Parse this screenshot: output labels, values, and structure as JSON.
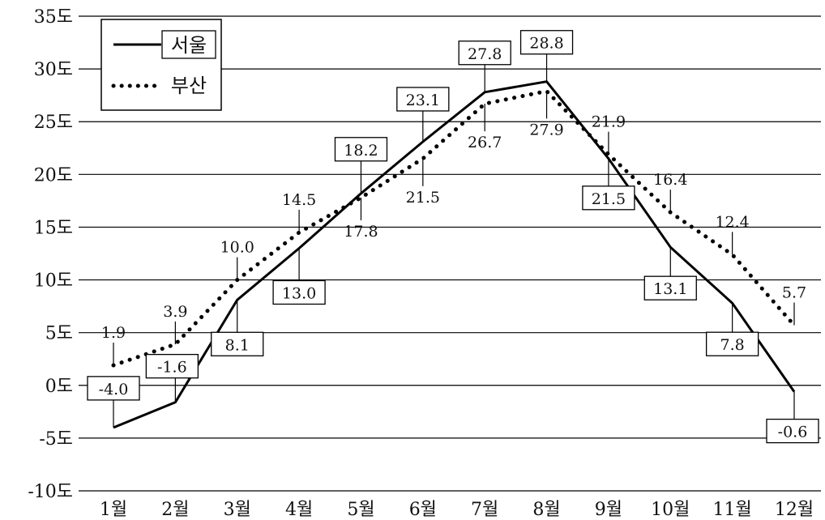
{
  "chart_data": {
    "type": "line",
    "title": "",
    "xlabel": "",
    "ylabel": "",
    "categories": [
      "1월",
      "2월",
      "3월",
      "4월",
      "5월",
      "6월",
      "7월",
      "8월",
      "9월",
      "10월",
      "11월",
      "12월"
    ],
    "ylim": [
      -10,
      35
    ],
    "yticks": [
      "-10도",
      "-5도",
      "0도",
      "5도",
      "10도",
      "15도",
      "20도",
      "25도",
      "30도",
      "35도"
    ],
    "grid": true,
    "legend_position": "top-left",
    "series": [
      {
        "name": "서울",
        "style": "solid",
        "color": "#000000",
        "values": [
          -4.0,
          -1.6,
          8.1,
          13.0,
          18.2,
          23.1,
          27.8,
          28.8,
          21.5,
          13.1,
          7.8,
          -0.6
        ],
        "labels": [
          "-4.0",
          "-1.6",
          "8.1",
          "13.0",
          "18.2",
          "23.1",
          "27.8",
          "28.8",
          "21.5",
          "13.1",
          "7.8",
          "-0.6"
        ]
      },
      {
        "name": "부산",
        "style": "dotted",
        "color": "#000000",
        "values": [
          1.9,
          3.9,
          10.0,
          14.5,
          17.8,
          21.5,
          26.7,
          27.9,
          21.9,
          16.4,
          12.4,
          5.7
        ],
        "labels": [
          "1.9",
          "3.9",
          "10.0",
          "14.5",
          "17.8",
          "21.5",
          "26.7",
          "27.9",
          "21.9",
          "16.4",
          "12.4",
          "5.7"
        ]
      }
    ]
  }
}
